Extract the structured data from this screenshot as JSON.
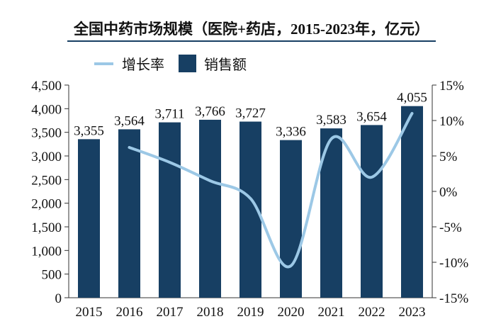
{
  "chart_data": {
    "type": "bar+line",
    "title": "全国中药市场规模（医院+药店，2015-2023年，亿元）",
    "categories": [
      "2015",
      "2016",
      "2017",
      "2018",
      "2019",
      "2020",
      "2021",
      "2022",
      "2023"
    ],
    "series": [
      {
        "name": "销售额",
        "type": "bar",
        "axis": "left",
        "color": "#173f63",
        "values": [
          3355,
          3564,
          3711,
          3766,
          3727,
          3336,
          3583,
          3654,
          4055
        ],
        "labels": [
          "3,355",
          "3,564",
          "3,711",
          "3,766",
          "3,727",
          "3,336",
          "3,583",
          "3,654",
          "4,055"
        ]
      },
      {
        "name": "增长率",
        "type": "line",
        "axis": "right",
        "color": "#9cc8e6",
        "smooth": true,
        "values": [
          null,
          6.2,
          4.1,
          1.5,
          -1.0,
          -10.5,
          7.4,
          2.0,
          11.0
        ]
      }
    ],
    "left_axis": {
      "range": [
        0,
        4500
      ],
      "ticks": [
        "0",
        "500",
        "1,000",
        "1,500",
        "2,000",
        "2,500",
        "3,000",
        "3,500",
        "4,000",
        "4,500"
      ]
    },
    "right_axis": {
      "range": [
        -15,
        15
      ],
      "ticks": [
        "-15%",
        "-10%",
        "-5%",
        "0%",
        "5%",
        "10%",
        "15%"
      ]
    },
    "legend": {
      "placement": "top-left",
      "items": [
        "增长率",
        "销售额"
      ]
    },
    "grid": false
  }
}
